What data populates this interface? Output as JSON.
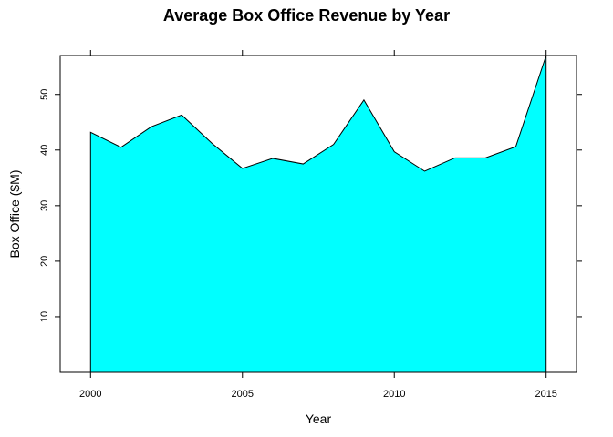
{
  "chart_data": {
    "type": "area",
    "title": "Average Box Office Revenue by Year",
    "xlabel": "Year",
    "ylabel": "Box Office ($M)",
    "x": [
      2000,
      2001,
      2002,
      2003,
      2004,
      2005,
      2006,
      2007,
      2008,
      2009,
      2010,
      2011,
      2012,
      2013,
      2014,
      2015
    ],
    "series": [
      {
        "values": [
          43.2,
          40.5,
          44.2,
          46.3,
          41.2,
          36.7,
          38.5,
          37.5,
          41.0,
          49.0,
          39.7,
          36.2,
          38.6,
          38.6,
          40.6,
          57.0
        ]
      }
    ],
    "xlim": [
      1999,
      2016
    ],
    "ylim": [
      0,
      57
    ],
    "x_ticks": [
      2000,
      2005,
      2010,
      2015
    ],
    "y_ticks": [
      10,
      20,
      30,
      40,
      50
    ],
    "fill_color": "#00ffff",
    "line_color": "#000000",
    "grid": false
  }
}
